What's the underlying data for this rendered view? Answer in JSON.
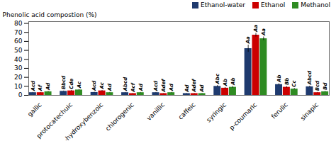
{
  "chart_data": {
    "type": "bar",
    "categories": [
      "gallic",
      "protocatechuic",
      "p-hydroxybenzoic",
      "chlorogenic",
      "vanillic",
      "caffeic",
      "syringic",
      "p-coumaric",
      "ferulic",
      "sinapic"
    ],
    "series": [
      {
        "name": "Ethanol-water",
        "color": "#1e3a6e",
        "values": [
          3.0,
          4.5,
          3.2,
          3.0,
          3.0,
          2.0,
          10.0,
          52.0,
          12.0,
          9.5
        ],
        "errors": [
          0.3,
          0.4,
          0.3,
          0.3,
          0.3,
          0.2,
          1.0,
          4.0,
          1.0,
          0.8
        ],
        "annotations": [
          "Acd",
          "Bbcd",
          "Acd",
          "Abcd",
          "Acd",
          "Ad",
          "Abc",
          "Aa",
          "Ab",
          "Abcd"
        ]
      },
      {
        "name": "Ethanol",
        "color": "#cc0000",
        "values": [
          3.0,
          5.0,
          5.0,
          2.0,
          2.0,
          2.0,
          8.0,
          67.0,
          9.0,
          3.0
        ],
        "errors": [
          0.3,
          0.4,
          0.5,
          0.2,
          0.2,
          0.2,
          0.8,
          2.0,
          0.8,
          0.3
        ],
        "annotations": [
          "Af",
          "Cde",
          "Ac",
          "Acf",
          "Adef",
          "Adef",
          "Ab",
          "Aa",
          "Bb",
          "Bcd"
        ]
      },
      {
        "name": "Methanol",
        "color": "#2e8b22",
        "values": [
          4.0,
          6.0,
          3.0,
          3.0,
          3.0,
          2.0,
          9.0,
          63.0,
          7.0,
          4.0
        ],
        "errors": [
          0.4,
          0.5,
          0.3,
          0.3,
          0.3,
          0.2,
          0.9,
          2.0,
          0.7,
          0.4
        ],
        "annotations": [
          "Ad",
          "Ac",
          "Ad",
          "Ad",
          "Ad",
          "Ad",
          "Ab",
          "Aa",
          "Cc",
          "Bd"
        ]
      }
    ],
    "ylabel": "Phenolic acid compostion (%)",
    "ylim": [
      0,
      82
    ],
    "yticks": [
      0,
      10,
      20,
      30,
      40,
      50,
      60,
      70,
      80
    ],
    "legend": "upper right",
    "grid": false
  }
}
